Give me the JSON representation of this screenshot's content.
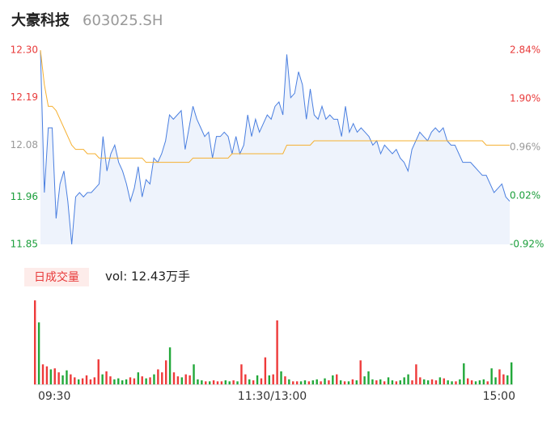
{
  "header": {
    "name": "大豪科技",
    "code": "603025.SH"
  },
  "chart_data": [
    {
      "type": "line",
      "x": [
        0,
        2,
        4,
        6,
        8,
        10,
        12,
        14,
        16,
        18,
        20,
        22,
        24,
        26,
        28,
        30,
        32,
        34,
        36,
        38,
        40,
        42,
        44,
        46,
        48,
        50,
        52,
        54,
        56,
        58,
        60,
        62,
        64,
        66,
        68,
        70,
        72,
        74,
        76,
        78,
        80,
        82,
        84,
        86,
        88,
        90,
        92,
        94,
        96,
        98,
        100,
        102,
        104,
        106,
        108,
        110,
        112,
        114,
        116,
        118,
        120,
        122,
        124,
        126,
        128,
        130,
        132,
        134,
        136,
        138,
        140,
        142,
        144,
        146,
        148,
        150,
        152,
        154,
        156,
        158,
        160,
        162,
        164,
        166,
        168,
        170,
        172,
        174,
        176,
        178,
        180,
        182,
        184,
        186,
        188,
        190,
        192,
        194,
        196,
        198,
        200,
        202,
        204,
        206,
        208,
        210,
        212,
        214,
        216,
        218,
        220,
        222,
        224,
        226,
        228,
        230,
        232,
        234,
        236,
        238,
        240
      ],
      "xlim": [
        0,
        240
      ],
      "series": [
        {
          "name": "price",
          "color": "#4a7fe0",
          "values": [
            12.3,
            11.97,
            12.12,
            12.12,
            11.91,
            11.99,
            12.02,
            11.95,
            11.85,
            11.96,
            11.97,
            11.96,
            11.97,
            11.97,
            11.98,
            11.99,
            12.1,
            12.02,
            12.06,
            12.08,
            12.04,
            12.02,
            11.99,
            11.95,
            11.98,
            12.03,
            11.96,
            12.0,
            11.99,
            12.05,
            12.04,
            12.06,
            12.09,
            12.15,
            12.14,
            12.15,
            12.16,
            12.07,
            12.12,
            12.17,
            12.14,
            12.12,
            12.1,
            12.11,
            12.05,
            12.1,
            12.1,
            12.11,
            12.1,
            12.06,
            12.1,
            12.06,
            12.08,
            12.15,
            12.1,
            12.14,
            12.11,
            12.13,
            12.15,
            12.14,
            12.17,
            12.18,
            12.15,
            12.29,
            12.19,
            12.2,
            12.25,
            12.22,
            12.14,
            12.21,
            12.15,
            12.14,
            12.17,
            12.14,
            12.15,
            12.14,
            12.14,
            12.1,
            12.17,
            12.11,
            12.13,
            12.11,
            12.12,
            12.11,
            12.1,
            12.08,
            12.09,
            12.06,
            12.08,
            12.07,
            12.06,
            12.07,
            12.05,
            12.04,
            12.02,
            12.07,
            12.09,
            12.11,
            12.1,
            12.09,
            12.11,
            12.12,
            12.11,
            12.12,
            12.09,
            12.08,
            12.08,
            12.06,
            12.04,
            12.04,
            12.04,
            12.03,
            12.02,
            12.01,
            12.01,
            11.99,
            11.97,
            11.98,
            11.99,
            11.96,
            11.95
          ]
        },
        {
          "name": "average",
          "color": "#f5b031",
          "values": [
            12.3,
            12.22,
            12.17,
            12.17,
            12.16,
            12.14,
            12.12,
            12.1,
            12.08,
            12.07,
            12.07,
            12.07,
            12.06,
            12.06,
            12.06,
            12.05,
            12.05,
            12.05,
            12.05,
            12.05,
            12.05,
            12.05,
            12.05,
            12.05,
            12.05,
            12.05,
            12.05,
            12.04,
            12.04,
            12.04,
            12.04,
            12.04,
            12.04,
            12.04,
            12.04,
            12.04,
            12.04,
            12.04,
            12.04,
            12.05,
            12.05,
            12.05,
            12.05,
            12.05,
            12.05,
            12.05,
            12.05,
            12.05,
            12.05,
            12.06,
            12.06,
            12.06,
            12.06,
            12.06,
            12.06,
            12.06,
            12.06,
            12.06,
            12.06,
            12.06,
            12.06,
            12.06,
            12.06,
            12.08,
            12.08,
            12.08,
            12.08,
            12.08,
            12.08,
            12.08,
            12.09,
            12.09,
            12.09,
            12.09,
            12.09,
            12.09,
            12.09,
            12.09,
            12.09,
            12.09,
            12.09,
            12.09,
            12.09,
            12.09,
            12.09,
            12.09,
            12.09,
            12.09,
            12.09,
            12.09,
            12.09,
            12.09,
            12.09,
            12.09,
            12.09,
            12.09,
            12.09,
            12.09,
            12.09,
            12.09,
            12.09,
            12.09,
            12.09,
            12.09,
            12.09,
            12.09,
            12.09,
            12.09,
            12.09,
            12.09,
            12.09,
            12.09,
            12.09,
            12.09,
            12.08,
            12.08,
            12.08,
            12.08,
            12.08,
            12.08,
            12.08
          ]
        }
      ],
      "ylim": [
        11.85,
        12.3
      ],
      "yticks": [
        {
          "value": 12.3,
          "label": "12.30"
        },
        {
          "value": 12.19,
          "label": "12.19"
        },
        {
          "value": 12.08,
          "label": "12.08"
        },
        {
          "value": 11.96,
          "label": "11.96"
        },
        {
          "value": 11.85,
          "label": "11.85"
        }
      ],
      "ytick_colors": [
        "#e83a3a",
        "#e83a3a",
        "#999999",
        "#1a9e3a",
        "#1a9e3a"
      ],
      "y2lim": [
        -0.92,
        2.84
      ],
      "y2ticks": [
        {
          "value": 2.84,
          "label": "2.84%"
        },
        {
          "value": 1.9,
          "label": "1.90%"
        },
        {
          "value": 0.96,
          "label": "0.96%"
        },
        {
          "value": 0.02,
          "label": "0.02%"
        },
        {
          "value": -0.92,
          "label": "-0.92%"
        }
      ],
      "y2tick_colors": [
        "#e83a3a",
        "#e83a3a",
        "#999999",
        "#1a9e3a",
        "#1a9e3a"
      ],
      "area_color": "#eef3fc"
    },
    {
      "type": "bar",
      "title": "日成交量",
      "annotation": "vol: 12.43万手",
      "x": [
        0,
        2,
        4,
        6,
        8,
        10,
        12,
        14,
        16,
        18,
        20,
        22,
        24,
        26,
        28,
        30,
        32,
        34,
        36,
        38,
        40,
        42,
        44,
        46,
        48,
        50,
        52,
        54,
        56,
        58,
        60,
        62,
        64,
        66,
        68,
        70,
        72,
        74,
        76,
        78,
        80,
        82,
        84,
        86,
        88,
        90,
        92,
        94,
        96,
        98,
        100,
        102,
        104,
        106,
        108,
        110,
        112,
        114,
        116,
        118,
        120,
        122,
        124,
        126,
        128,
        130,
        132,
        134,
        136,
        138,
        140,
        142,
        144,
        146,
        148,
        150,
        152,
        154,
        156,
        158,
        160,
        162,
        164,
        166,
        168,
        170,
        172,
        174,
        176,
        178,
        180,
        182,
        184,
        186,
        188,
        190,
        192,
        194,
        196,
        198,
        200,
        202,
        204,
        206,
        208,
        210,
        212,
        214,
        216,
        218,
        220,
        222,
        224,
        226,
        228,
        230,
        232,
        234,
        236,
        238,
        240
      ],
      "xlim": [
        0,
        240
      ],
      "xticks": [
        {
          "value": 0,
          "label": "09:30"
        },
        {
          "value": 120,
          "label": "11:30/13:00"
        },
        {
          "value": 240,
          "label": "15:00"
        }
      ],
      "values": [
        8400,
        6200,
        2000,
        1800,
        1500,
        1600,
        1200,
        900,
        1400,
        1000,
        700,
        500,
        600,
        900,
        500,
        700,
        2500,
        1000,
        1300,
        800,
        500,
        600,
        400,
        500,
        700,
        600,
        1200,
        800,
        600,
        700,
        1000,
        1500,
        1200,
        2400,
        3700,
        1200,
        800,
        700,
        1000,
        900,
        2000,
        500,
        400,
        300,
        300,
        400,
        300,
        300,
        400,
        300,
        400,
        300,
        2000,
        1000,
        500,
        400,
        900,
        600,
        2700,
        900,
        1000,
        6400,
        1300,
        800,
        500,
        300,
        300,
        300,
        400,
        300,
        400,
        500,
        300,
        600,
        400,
        900,
        1000,
        400,
        300,
        300,
        500,
        400,
        2400,
        800,
        1300,
        500,
        400,
        500,
        300,
        700,
        400,
        300,
        400,
        700,
        1000,
        400,
        2000,
        700,
        500,
        400,
        500,
        400,
        700,
        600,
        400,
        300,
        300,
        500,
        2100,
        600,
        400,
        300,
        400,
        500,
        300,
        1600,
        700,
        1500,
        1000,
        900,
        2200
      ],
      "ylim": [
        0,
        8500
      ],
      "up_color": "#ee3a3a",
      "down_color": "#22a83a",
      "badge_color": "#fdecea"
    }
  ]
}
